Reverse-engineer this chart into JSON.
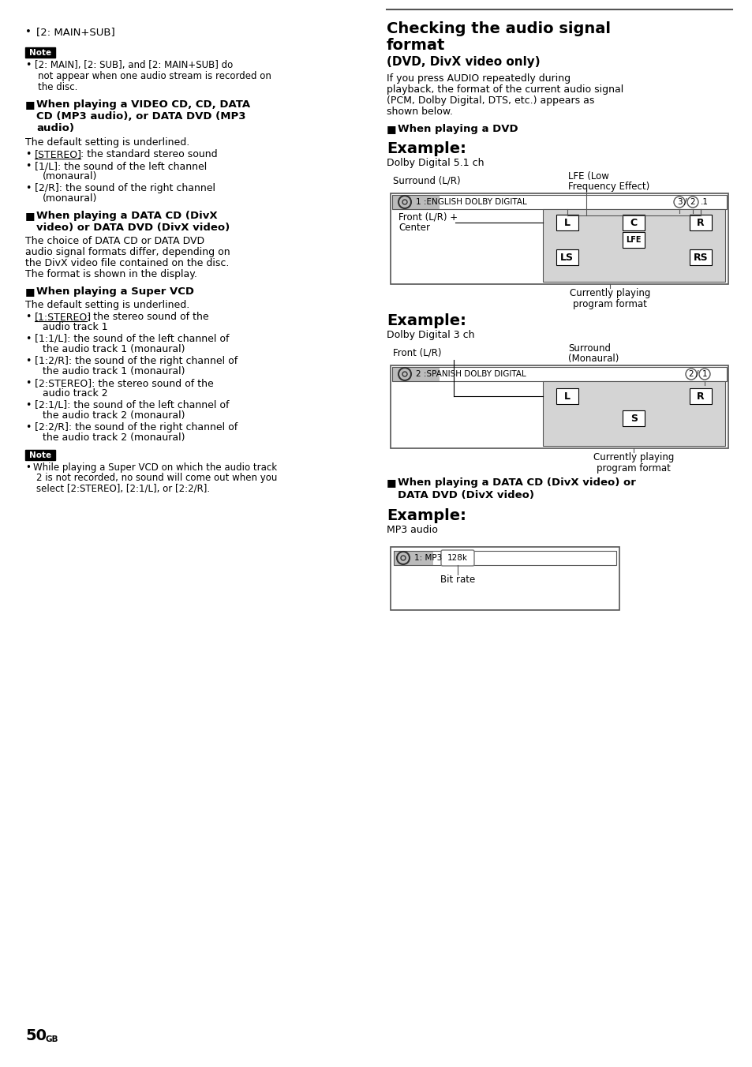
{
  "bg_color": "#ffffff",
  "page_num": "50",
  "page_num_sup": "GB",
  "left_col": {
    "bullet_top": "[2: MAIN+SUB]",
    "note_label": "Note",
    "note_text": "[2: MAIN], [2: SUB], and [2: MAIN+SUB] do\nnot appear when one audio stream is recorded on\nthe disc.",
    "section1_header_lines": [
      "When playing a VIDEO CD, CD, DATA",
      "CD (MP3 audio), or DATA DVD (MP3",
      "audio)"
    ],
    "section1_body": [
      "The default setting is underlined.",
      "[STEREO]: the standard stereo sound",
      "[1/L]: the sound of the left channel",
      "(monaural)",
      "[2/R]: the sound of the right channel",
      "(monaural)"
    ],
    "section2_header_lines": [
      "When playing a DATA CD (DivX",
      "video) or DATA DVD (DivX video)"
    ],
    "section2_body": [
      "The choice of DATA CD or DATA DVD",
      "audio signal formats differ, depending on",
      "the DivX video file contained on the disc.",
      "The format is shown in the display."
    ],
    "section3_header_lines": [
      "When playing a Super VCD"
    ],
    "section3_body": [
      "The default setting is underlined.",
      "[1:STEREO]: the stereo sound of the",
      "audio track 1",
      "[1:1/L]: the sound of the left channel of",
      "the audio track 1 (monaural)",
      "[1:2/R]: the sound of the right channel of",
      "the audio track 1 (monaural)",
      "[2:STEREO]: the stereo sound of the",
      "audio track 2",
      "[2:1/L]: the sound of the left channel of",
      "the audio track 2 (monaural)",
      "[2:2/R]: the sound of the right channel of",
      "the audio track 2 (monaural)"
    ],
    "note2_text": [
      "While playing a Super VCD on which the audio track",
      "2 is not recorded, no sound will come out when you",
      "select [2:STEREO], [2:1/L], or [2:2/R]."
    ]
  },
  "right_col": {
    "title_lines": [
      "Checking the audio signal",
      "format"
    ],
    "subtitle": "(DVD, DivX video only)",
    "intro_lines": [
      "If you press AUDIO repeatedly during",
      "playback, the format of the current audio signal",
      "(PCM, Dolby Digital, DTS, etc.) appears as",
      "shown below."
    ],
    "dvd_header": "When playing a DVD",
    "example1_label": "Example:",
    "example1_desc": "Dolby Digital 5.1 ch",
    "disp1_text": "1 :ENGLISH DOLBY DIGITAL",
    "label_surround": "Surround (L/R)",
    "label_lfe1": "LFE (Low",
    "label_lfe2": "Frequency Effect)",
    "label_front": "Front (L/R) +",
    "label_center": "Center",
    "label_currently1a": "Currently playing",
    "label_currently1b": "program format",
    "example2_label": "Example:",
    "example2_desc": "Dolby Digital 3 ch",
    "disp2_text": "2 :SPANISH DOLBY DIGITAL",
    "label_front2": "Front (L/R)",
    "label_surround2a": "Surround",
    "label_surround2b": "(Monaural)",
    "label_currently2a": "Currently playing",
    "label_currently2b": "program format",
    "divx_header1": "■ When playing a DATA CD (DivX video) or",
    "divx_header2": "DATA DVD (DivX video)",
    "example3_label": "Example:",
    "example3_desc": "MP3 audio",
    "disp3_text": "1: MP3",
    "disp3_bitrate": "128k",
    "label_bitrate": "Bit rate"
  }
}
